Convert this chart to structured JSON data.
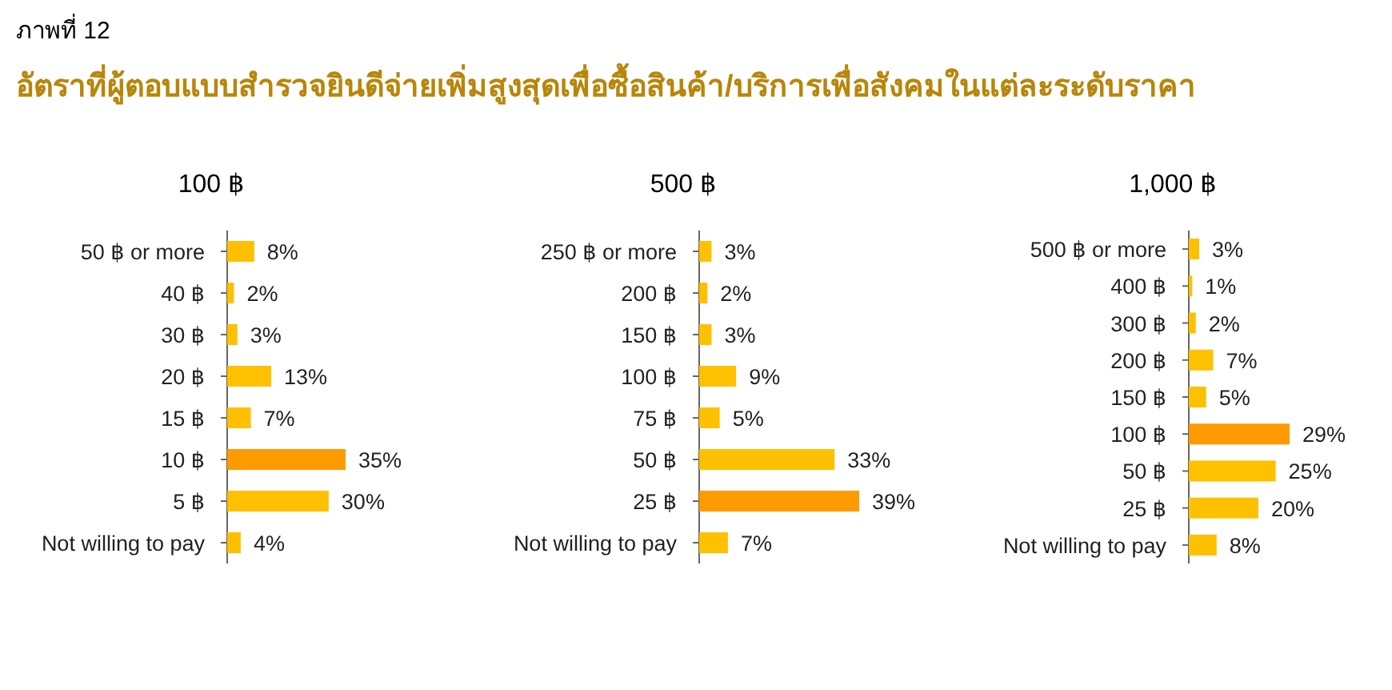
{
  "chart_data": [
    {
      "type": "bar",
      "orientation": "horizontal",
      "title": "100 ฿",
      "annotations": [
        "ภาพที่ 12",
        "อัตราที่ผู้ตอบแบบสำรวจยินดีจ่ายเพิ่มสูงสุดเพื่อซื้อสินค้า/บริการเพื่อสังคมในแต่ละระดับราคา"
      ],
      "categories": [
        "50 ฿ or more",
        "40 ฿",
        "30 ฿",
        "20 ฿",
        "15 ฿",
        "10 ฿",
        "5 ฿",
        "Not willing to pay"
      ],
      "values": [
        8,
        2,
        3,
        13,
        7,
        35,
        30,
        4
      ],
      "value_labels": [
        "8%",
        "2%",
        "3%",
        "13%",
        "7%",
        "35%",
        "30%",
        "4%"
      ],
      "colors": [
        "#ffc000",
        "#ffc000",
        "#ffc000",
        "#ffc000",
        "#ffc000",
        "#ff9a00",
        "#ffc000",
        "#ffc000"
      ]
    },
    {
      "type": "bar",
      "orientation": "horizontal",
      "title": "500 ฿",
      "categories": [
        "250 ฿ or more",
        "200 ฿",
        "150 ฿",
        "100 ฿",
        "75 ฿",
        "50 ฿",
        "25 ฿",
        "Not willing to pay"
      ],
      "values": [
        3,
        2,
        3,
        9,
        5,
        33,
        39,
        7
      ],
      "value_labels": [
        "3%",
        "2%",
        "3%",
        "9%",
        "5%",
        "33%",
        "39%",
        "7%"
      ],
      "colors": [
        "#ffc000",
        "#ffc000",
        "#ffc000",
        "#ffc000",
        "#ffc000",
        "#ffc000",
        "#ff9a00",
        "#ffc000"
      ]
    },
    {
      "type": "bar",
      "orientation": "horizontal",
      "title": "1,000 ฿",
      "categories": [
        "500 ฿ or more",
        "400 ฿",
        "300 ฿",
        "200 ฿",
        "150 ฿",
        "100 ฿",
        "50 ฿",
        "25 ฿",
        "Not willing to pay"
      ],
      "values": [
        3,
        1,
        2,
        7,
        5,
        29,
        25,
        20,
        8
      ],
      "value_labels": [
        "3%",
        "1%",
        "2%",
        "7%",
        "5%",
        "29%",
        "25%",
        "20%",
        "8%"
      ],
      "colors": [
        "#ffc000",
        "#ffc000",
        "#ffc000",
        "#ffc000",
        "#ffc000",
        "#ff9a00",
        "#ffc000",
        "#ffc000",
        "#ffc000"
      ]
    }
  ]
}
